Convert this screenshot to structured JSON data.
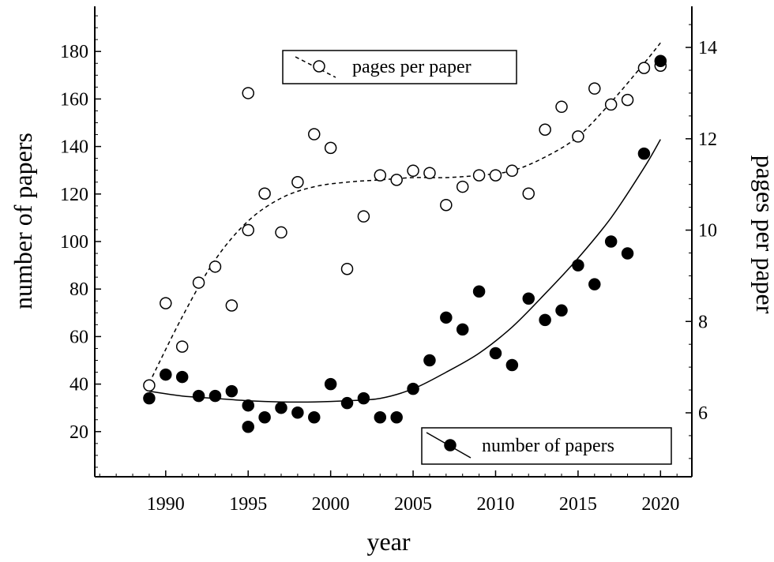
{
  "chart_data": {
    "type": "scatter",
    "xlabel": "year",
    "ylabel": "number of papers",
    "y2label": "pages per paper",
    "xlim": [
      1985.7,
      2021.9
    ],
    "ylim": [
      1,
      199
    ],
    "y2lim": [
      4.6,
      14.9
    ],
    "xticks": [
      1990,
      1995,
      2000,
      2005,
      2010,
      2015,
      2020
    ],
    "yticks": [
      20,
      40,
      60,
      80,
      100,
      120,
      140,
      160,
      180
    ],
    "y2ticks": [
      6,
      8,
      10,
      12,
      14
    ],
    "grid": false,
    "legend": [
      {
        "label": "pages per paper",
        "placement": "top-center",
        "marker": "open-circle",
        "line": "dashed"
      },
      {
        "label": "number of papers",
        "placement": "bottom-right",
        "marker": "filled-circle",
        "line": "solid"
      }
    ],
    "series": [
      {
        "name": "pages per paper",
        "axis": "right",
        "marker": "open",
        "x": [
          1989,
          1990,
          1991,
          1992,
          1993,
          1994,
          1995,
          1995,
          1996,
          1997,
          1998,
          1999,
          2000,
          2001,
          2002,
          2003,
          2004,
          2005,
          2006,
          2007,
          2008,
          2009,
          2010,
          2011,
          2012,
          2013,
          2014,
          2015,
          2016,
          2017,
          2018,
          2019,
          2020
        ],
        "y": [
          6.6,
          8.4,
          7.45,
          8.85,
          9.2,
          8.35,
          10.0,
          13.0,
          10.8,
          9.95,
          11.05,
          12.1,
          11.8,
          9.15,
          10.3,
          11.2,
          11.1,
          11.3,
          11.25,
          10.55,
          10.95,
          11.2,
          11.2,
          11.3,
          10.8,
          12.2,
          12.7,
          12.05,
          13.1,
          12.75,
          12.85,
          13.55,
          13.6
        ]
      },
      {
        "name": "number of papers",
        "axis": "left",
        "marker": "filled",
        "x": [
          1989,
          1990,
          1991,
          1992,
          1993,
          1994,
          1995,
          1995,
          1996,
          1997,
          1998,
          1999,
          2000,
          2001,
          2002,
          2003,
          2004,
          2005,
          2006,
          2007,
          2008,
          2009,
          2010,
          2011,
          2012,
          2013,
          2014,
          2015,
          2016,
          2017,
          2018,
          2019,
          2020
        ],
        "y": [
          34,
          44,
          43,
          35,
          35,
          37,
          31,
          22,
          26,
          30,
          28,
          26,
          40,
          32,
          34,
          26,
          26,
          38,
          50,
          68,
          63,
          79,
          53,
          48,
          76,
          67,
          71,
          90,
          82,
          100,
          95,
          137,
          176
        ]
      }
    ],
    "fits": [
      {
        "series": "pages per paper",
        "axis": "right",
        "style": "dashed",
        "x": [
          1989,
          1991,
          1993,
          1995,
          1997,
          1999,
          2001,
          2003,
          2005,
          2007,
          2009,
          2011,
          2013,
          2015,
          2017,
          2019,
          2020
        ],
        "y": [
          6.65,
          8.1,
          9.35,
          10.2,
          10.7,
          10.95,
          11.05,
          11.1,
          11.15,
          11.15,
          11.2,
          11.3,
          11.6,
          12.05,
          12.8,
          13.65,
          14.1
        ]
      },
      {
        "series": "number of papers",
        "axis": "left",
        "style": "solid",
        "x": [
          1989,
          1991,
          1993,
          1995,
          1997,
          1999,
          2001,
          2003,
          2005,
          2007,
          2009,
          2011,
          2013,
          2015,
          2017,
          2019,
          2020
        ],
        "y": [
          37,
          35,
          34,
          33,
          32.5,
          32.5,
          33,
          34,
          38,
          45,
          53,
          64,
          78,
          93,
          110,
          131,
          143
        ]
      }
    ]
  }
}
